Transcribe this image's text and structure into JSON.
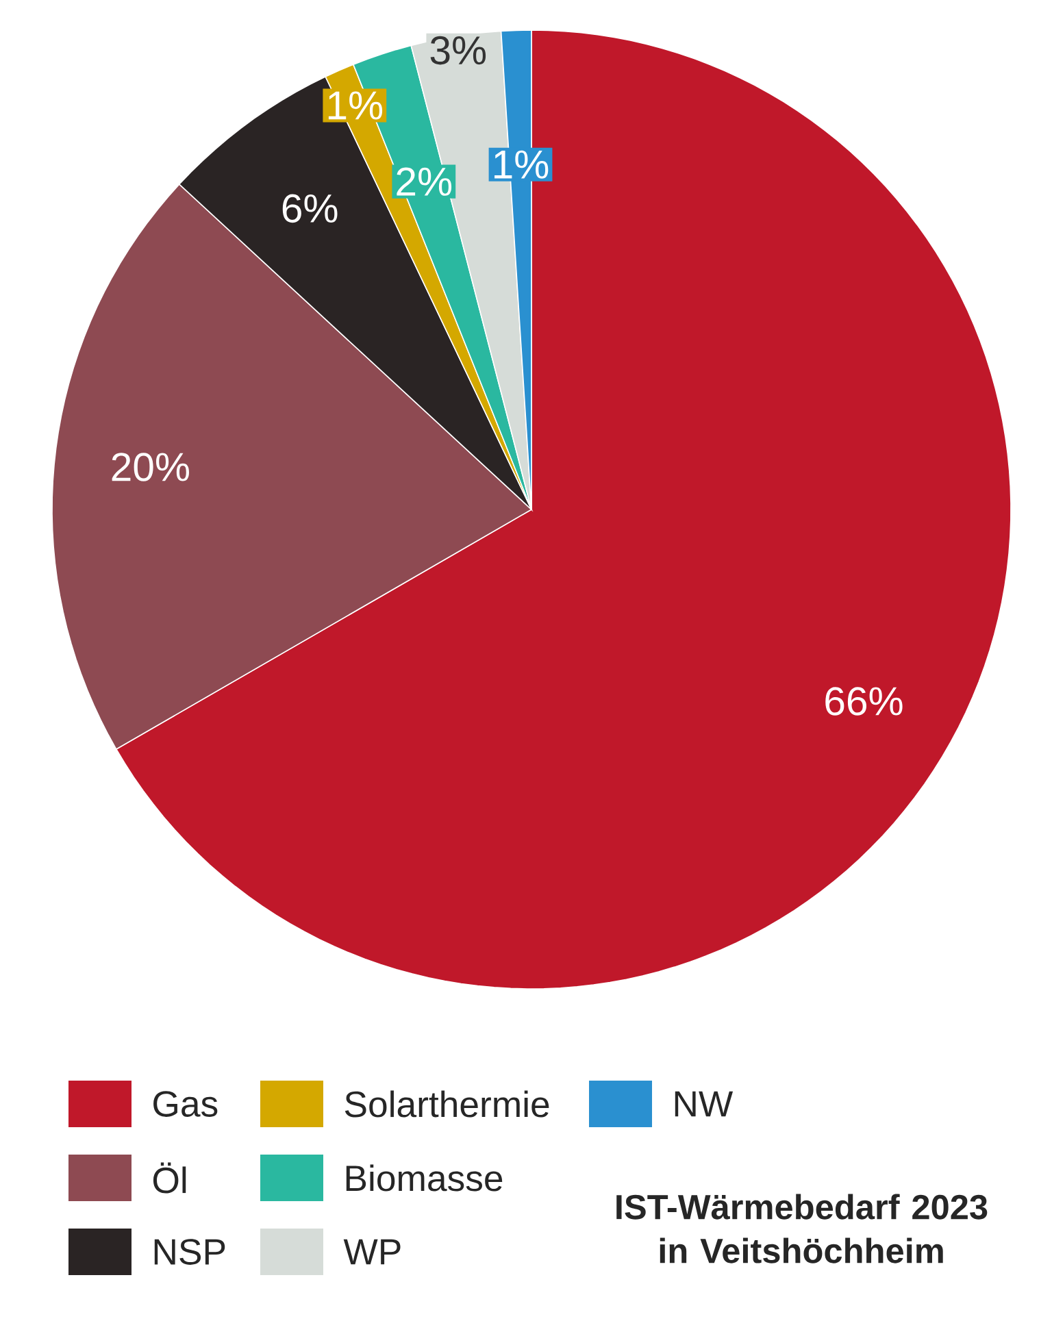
{
  "chart_data": {
    "type": "pie",
    "title": "IST-Wärmebedarf 2023 in Veitshöchheim",
    "categories": [
      "Gas",
      "Öl",
      "NSP",
      "Solarthermie",
      "Biomasse",
      "WP",
      "NW"
    ],
    "values": [
      66,
      20,
      6,
      1,
      2,
      3,
      1
    ],
    "colors": [
      "#c0182a",
      "#8e4a52",
      "#2a2424",
      "#d4a800",
      "#2ab8a0",
      "#d6dcd8",
      "#2a90d0"
    ],
    "value_labels": [
      "66%",
      "20%",
      "6%",
      "1%",
      "2%",
      "3%",
      "1%"
    ],
    "legend": "bottom"
  }
}
